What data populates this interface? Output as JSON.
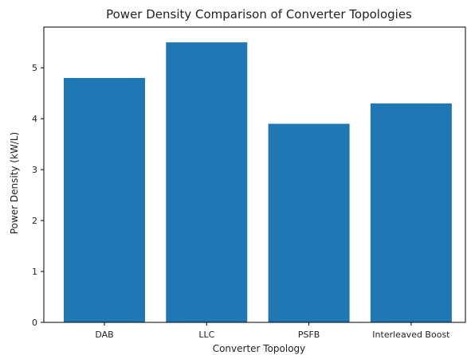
{
  "chart_data": {
    "type": "bar",
    "title": "Power Density Comparison of Converter Topologies",
    "xlabel": "Converter Topology",
    "ylabel": "Power Density (kW/L)",
    "categories": [
      "DAB",
      "LLC",
      "PSFB",
      "Interleaved Boost"
    ],
    "values": [
      4.8,
      5.5,
      3.9,
      4.3
    ],
    "ylim": [
      0,
      5.8
    ],
    "yticks": [
      "0",
      "1",
      "2",
      "3",
      "4",
      "5"
    ],
    "bar_color": "#1f77b4",
    "grid": false
  }
}
